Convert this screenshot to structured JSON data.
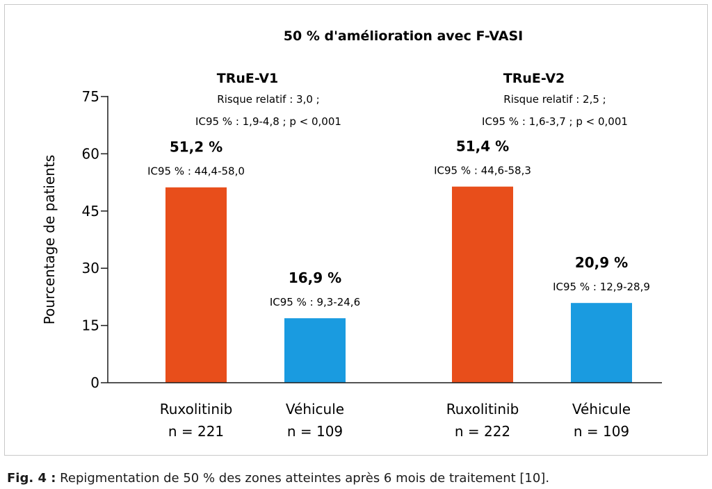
{
  "chart_data": {
    "type": "bar",
    "title": "50 % d'amélioration avec F-VASI",
    "ylabel": "Pourcentage de patients",
    "ylim": [
      0,
      75
    ],
    "yticks": [
      0,
      15,
      30,
      45,
      60,
      75
    ],
    "colors": {
      "ruxolitinib": "#e84e1b",
      "vehicule": "#1a9be0"
    },
    "groups": [
      {
        "name": "TRuE-V1",
        "stats": [
          "Risque relatif : 3,0 ;",
          "IC95 % : 1,9-4,8 ; p < 0,001"
        ],
        "bars": [
          {
            "category": "Ruxolitinib",
            "n": "n = 221",
            "value": 51.2,
            "label": "51,2 %",
            "ci": "IC95 % : 44,4-58,0",
            "color_key": "ruxolitinib"
          },
          {
            "category": "Véhicule",
            "n": "n = 109",
            "value": 16.9,
            "label": "16,9 %",
            "ci": "IC95 % : 9,3-24,6",
            "color_key": "vehicule"
          }
        ]
      },
      {
        "name": "TRuE-V2",
        "stats": [
          "Risque relatif : 2,5 ;",
          "IC95 % : 1,6-3,7 ; p < 0,001"
        ],
        "bars": [
          {
            "category": "Ruxolitinib",
            "n": "n = 222",
            "value": 51.4,
            "label": "51,4 %",
            "ci": "IC95 % : 44,6-58,3",
            "color_key": "ruxolitinib"
          },
          {
            "category": "Véhicule",
            "n": "n = 109",
            "value": 20.9,
            "label": "20,9 %",
            "ci": "IC95 % : 12,9-28,9",
            "color_key": "vehicule"
          }
        ]
      }
    ]
  },
  "caption": {
    "lead": "Fig. 4 :",
    "text": " Repigmentation de 50 % des zones atteintes après 6 mois de traitement [10]."
  }
}
